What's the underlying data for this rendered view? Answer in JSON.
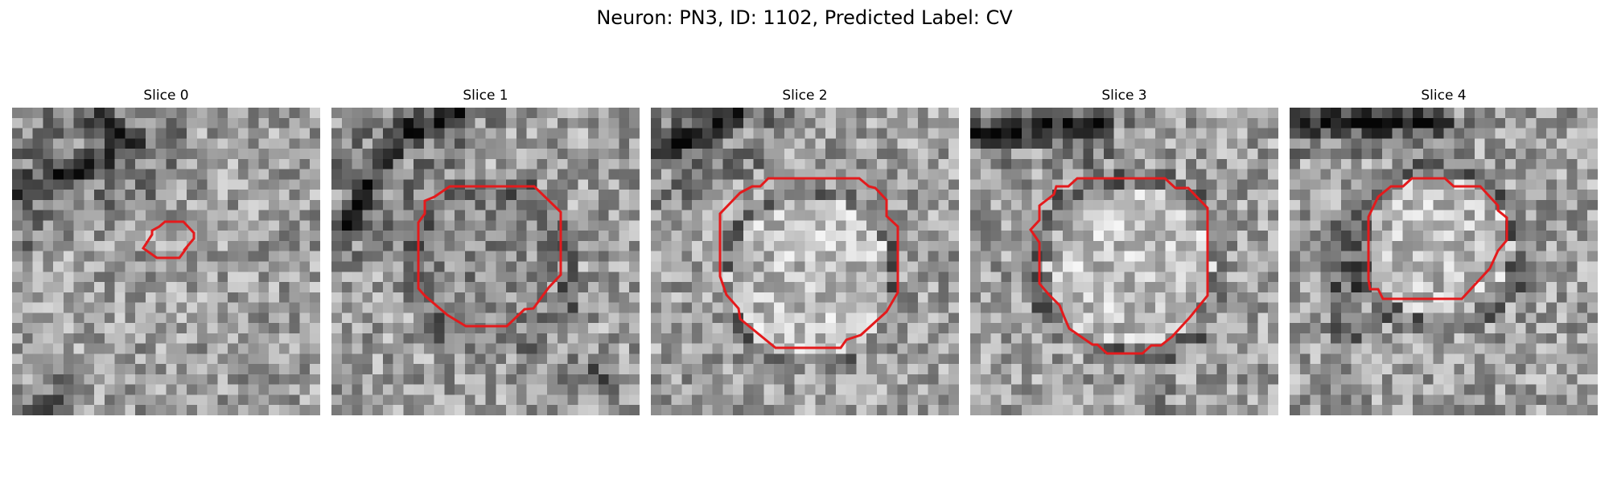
{
  "figure": {
    "title": "Neuron: PN3, ID: 1102, Predicted Label: CV",
    "contour_color": "#e41a1c",
    "colormap": "gray"
  },
  "panels": [
    {
      "title": "Slice 0"
    },
    {
      "title": "Slice 1"
    },
    {
      "title": "Slice 2"
    },
    {
      "title": "Slice 3"
    },
    {
      "title": "Slice 4"
    }
  ]
}
